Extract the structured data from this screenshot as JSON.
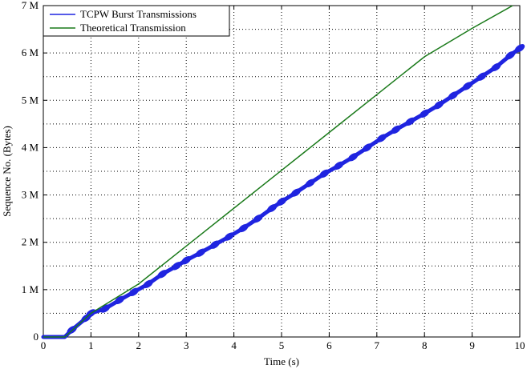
{
  "chart_data": {
    "type": "line",
    "title": "",
    "xlabel": "Time (s)",
    "ylabel": "Sequence No. (Bytes)",
    "xlim": [
      0,
      10
    ],
    "ylim": [
      0,
      7
    ],
    "x_ticks": [
      0,
      1,
      2,
      3,
      4,
      5,
      6,
      7,
      8,
      9,
      10
    ],
    "x_tick_labels": [
      "0",
      "1",
      "2",
      "3",
      "4",
      "5",
      "6",
      "7",
      "8",
      "9",
      "10"
    ],
    "y_ticks": [
      0,
      1,
      2,
      3,
      4,
      5,
      6,
      7
    ],
    "y_tick_labels": [
      "0",
      "1 M",
      "2 M",
      "3 M",
      "4 M",
      "5 M",
      "6 M",
      "7 M"
    ],
    "grid": "dotted",
    "legend_position": "top-left",
    "series": [
      {
        "name": "TCPW Burst Transmissions",
        "color": "#1f24e0",
        "style": "thick-burst",
        "x": [
          0,
          0.45,
          0.6,
          0.9,
          1.0,
          1.3,
          1.6,
          1.9,
          2.2,
          2.5,
          2.8,
          3.0,
          3.3,
          3.6,
          3.9,
          4.2,
          4.5,
          4.8,
          5.0,
          5.3,
          5.6,
          5.9,
          6.2,
          6.5,
          6.8,
          7.1,
          7.4,
          7.7,
          8.0,
          8.3,
          8.6,
          8.9,
          9.2,
          9.5,
          9.8,
          10.0
        ],
        "y": [
          0,
          0,
          0.15,
          0.4,
          0.5,
          0.6,
          0.78,
          0.95,
          1.12,
          1.33,
          1.5,
          1.62,
          1.78,
          1.95,
          2.12,
          2.3,
          2.5,
          2.72,
          2.86,
          3.05,
          3.25,
          3.45,
          3.62,
          3.8,
          4.0,
          4.2,
          4.38,
          4.55,
          4.72,
          4.9,
          5.1,
          5.3,
          5.5,
          5.7,
          5.95,
          6.1
        ]
      },
      {
        "name": "Theoretical Transmission",
        "color": "#1a7a1a",
        "style": "line",
        "x": [
          0,
          0.45,
          1.0,
          2.0,
          3.0,
          4.0,
          5.0,
          6.0,
          7.0,
          8.0,
          9.0,
          9.85
        ],
        "y": [
          0,
          0,
          0.5,
          1.12,
          1.92,
          2.72,
          3.52,
          4.32,
          5.12,
          5.92,
          6.52,
          7.0
        ]
      }
    ]
  }
}
